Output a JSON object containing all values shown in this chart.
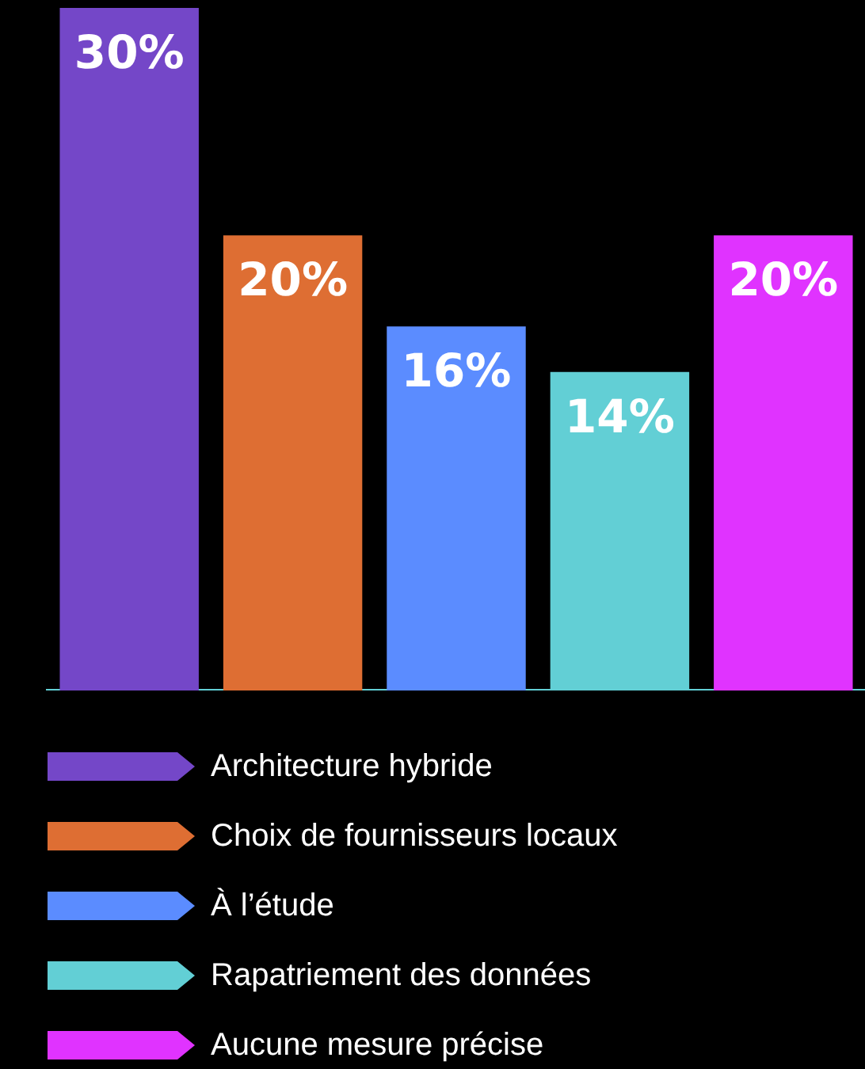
{
  "chart_data": {
    "type": "bar",
    "categories": [
      null
    ],
    "series": [
      {
        "name": "Architecture hybride",
        "color": "#7447c8",
        "values": [
          30
        ],
        "value_labels": [
          "30%"
        ]
      },
      {
        "name": "Choix de fournisseurs locaux",
        "color": "#de6e33",
        "values": [
          20
        ],
        "value_labels": [
          "20%"
        ]
      },
      {
        "name": "À l’étude",
        "color": "#5b8cff",
        "values": [
          16
        ],
        "value_labels": [
          "16%"
        ]
      },
      {
        "name": "Rapatriement des données",
        "color": "#62cfd5",
        "values": [
          14
        ],
        "value_labels": [
          "14%"
        ]
      },
      {
        "name": "Aucune mesure précise",
        "color": "#e033ff",
        "values": [
          20
        ],
        "value_labels": [
          "20%"
        ]
      }
    ],
    "legend": "bottom",
    "tick_labels": false,
    "grid": false
  }
}
